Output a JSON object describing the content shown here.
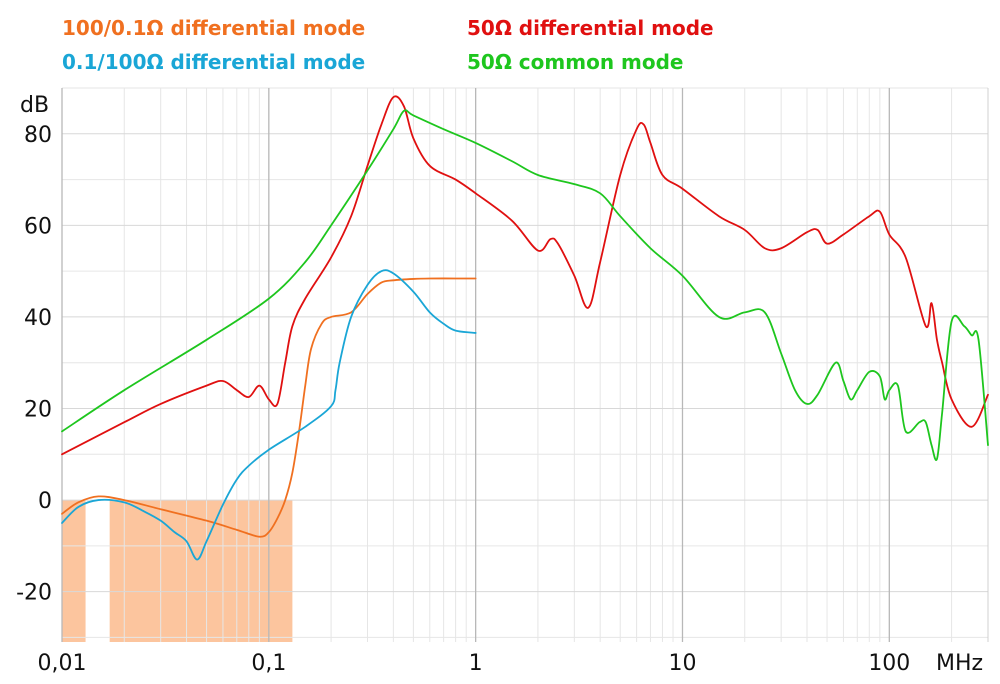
{
  "chart_data": {
    "type": "line",
    "title": "",
    "xlabel": "MHz",
    "ylabel": "dB",
    "xscale": "log",
    "xlim": [
      0.01,
      300
    ],
    "ylim": [
      -31,
      90
    ],
    "grid": true,
    "legend_position": "top-left",
    "x_ticks": [
      {
        "value": 0.01,
        "label": "0,01"
      },
      {
        "value": 0.1,
        "label": "0,1"
      },
      {
        "value": 1,
        "label": "1"
      },
      {
        "value": 10,
        "label": "10"
      },
      {
        "value": 100,
        "label": "100"
      }
    ],
    "y_ticks": [
      {
        "value": -20,
        "label": "-20"
      },
      {
        "value": 0,
        "label": "0"
      },
      {
        "value": 20,
        "label": "20"
      },
      {
        "value": 40,
        "label": "40"
      },
      {
        "value": 60,
        "label": "60"
      },
      {
        "value": 80,
        "label": "80"
      }
    ],
    "shaded_regions": [
      {
        "x": [
          0.01,
          0.013
        ],
        "y": [
          -31,
          0
        ],
        "color": "#fcc59e"
      },
      {
        "x": [
          0.017,
          0.13
        ],
        "y": [
          -31,
          0
        ],
        "color": "#fcc59e"
      }
    ],
    "series": [
      {
        "name": "100/0.1Ω differential mode",
        "color": "#f07020",
        "x": [
          0.01,
          0.012,
          0.015,
          0.02,
          0.03,
          0.05,
          0.07,
          0.09,
          0.1,
          0.11,
          0.12,
          0.13,
          0.14,
          0.15,
          0.16,
          0.18,
          0.2,
          0.25,
          0.3,
          0.35,
          0.4,
          0.5,
          0.6,
          0.8,
          1.0
        ],
        "y": [
          -3,
          -0.5,
          0.8,
          0,
          -2,
          -4.5,
          -6.5,
          -8,
          -7,
          -4,
          0,
          6,
          15,
          25,
          33,
          38.5,
          40,
          41,
          45,
          47.5,
          48,
          48.3,
          48.4,
          48.4,
          48.4
        ]
      },
      {
        "name": "0.1/100Ω differential mode",
        "color": "#1aa6d6",
        "x": [
          0.01,
          0.012,
          0.015,
          0.02,
          0.025,
          0.03,
          0.035,
          0.04,
          0.045,
          0.05,
          0.06,
          0.07,
          0.08,
          0.1,
          0.15,
          0.2,
          0.21,
          0.22,
          0.25,
          0.3,
          0.35,
          0.4,
          0.5,
          0.6,
          0.7,
          0.8,
          1.0
        ],
        "y": [
          -5,
          -1.5,
          0,
          -0.5,
          -2.5,
          -4.5,
          -7,
          -9,
          -13,
          -9,
          -1,
          4.5,
          7.5,
          11,
          16,
          20.5,
          24,
          30,
          40,
          47,
          50,
          49.5,
          45.5,
          41,
          38.5,
          37,
          36.5
        ]
      },
      {
        "name": "50Ω differential mode",
        "color": "#e01010",
        "x": [
          0.01,
          0.02,
          0.03,
          0.05,
          0.06,
          0.07,
          0.08,
          0.09,
          0.1,
          0.11,
          0.12,
          0.13,
          0.15,
          0.2,
          0.25,
          0.3,
          0.35,
          0.4,
          0.45,
          0.5,
          0.6,
          0.8,
          1.0,
          1.5,
          2.0,
          2.3,
          2.5,
          3.0,
          3.5,
          4.0,
          5.0,
          6.0,
          6.5,
          7.0,
          8.0,
          10,
          15,
          20,
          25,
          30,
          40,
          45,
          50,
          60,
          80,
          90,
          100,
          120,
          150,
          160,
          170,
          180,
          200,
          250,
          300
        ],
        "y": [
          10,
          17,
          21,
          25,
          26,
          24,
          22.5,
          25,
          22,
          21,
          30,
          38,
          44,
          53,
          62,
          73,
          82,
          88,
          86,
          79,
          73,
          70,
          67,
          61,
          54.5,
          57,
          56,
          49,
          42,
          52,
          71,
          81,
          82,
          78,
          71,
          68,
          62,
          59,
          55,
          55,
          58.5,
          59,
          56,
          58,
          62,
          63,
          58,
          53,
          38,
          43,
          35,
          30,
          22,
          16,
          23
        ]
      },
      {
        "name": "50Ω common mode",
        "color": "#1ec61e",
        "x": [
          0.01,
          0.02,
          0.05,
          0.1,
          0.15,
          0.2,
          0.3,
          0.4,
          0.45,
          0.5,
          0.7,
          1.0,
          1.5,
          2.0,
          3.0,
          4.0,
          5.0,
          7.0,
          10,
          15,
          20,
          25,
          30,
          35,
          40,
          45,
          55,
          60,
          65,
          70,
          80,
          90,
          95,
          100,
          110,
          120,
          140,
          150,
          160,
          170,
          180,
          200,
          230,
          250,
          270,
          300
        ],
        "y": [
          15,
          24,
          35,
          44,
          52,
          60,
          72,
          81,
          85,
          84,
          81,
          78,
          74,
          71,
          69,
          67,
          62,
          55,
          49,
          40,
          41,
          41,
          32,
          24,
          21,
          23,
          30,
          26,
          22,
          24,
          28,
          27,
          22,
          24,
          25,
          15,
          17,
          17,
          12,
          9,
          19,
          39,
          38,
          36,
          35,
          12
        ]
      }
    ]
  }
}
